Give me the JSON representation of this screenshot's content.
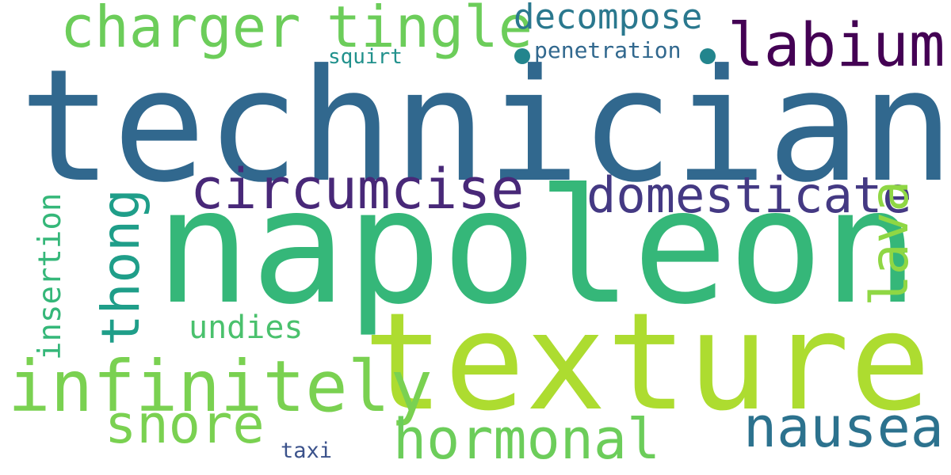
{
  "words": [
    {
      "text": "technician",
      "color": "#31688e"
    },
    {
      "text": "napoleon",
      "color": "#35b779"
    },
    {
      "text": "texture",
      "color": "#addc30"
    },
    {
      "text": "charger",
      "color": "#6ccd5a"
    },
    {
      "text": "tingle",
      "color": "#6ccd5a"
    },
    {
      "text": "labium",
      "color": "#440154"
    },
    {
      "text": "decompose",
      "color": "#2a788e"
    },
    {
      "text": "penetration",
      "color": "#31688e"
    },
    {
      "text": "squirt",
      "color": "#21918c"
    },
    {
      "text": "circumcise",
      "color": "#482878"
    },
    {
      "text": "domesticate",
      "color": "#443983"
    },
    {
      "text": "thong",
      "color": "#1f9e89"
    },
    {
      "text": "lava",
      "color": "#8fd744"
    },
    {
      "text": "insertion",
      "color": "#35b779"
    },
    {
      "text": "undies",
      "color": "#4ac16d"
    },
    {
      "text": "infinitely",
      "color": "#7ad151"
    },
    {
      "text": "snore",
      "color": "#7ad151"
    },
    {
      "text": "hormonal",
      "color": "#6ccd5a"
    },
    {
      "text": "nausea",
      "color": "#2c728e"
    },
    {
      "text": "taxi",
      "color": "#3b528b"
    }
  ],
  "dot_color": "#23858d"
}
